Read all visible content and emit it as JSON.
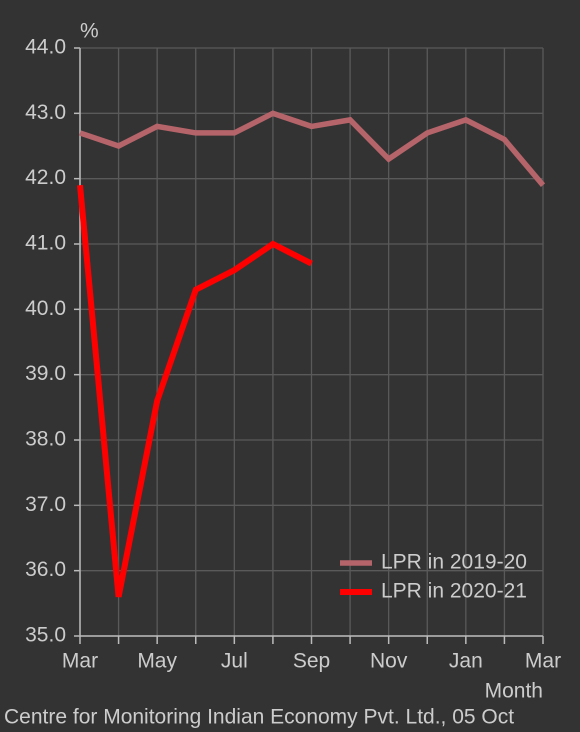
{
  "chart_data": {
    "type": "line",
    "y_unit_label": "%",
    "x_axis_label": "Month",
    "source": "Centre for Monitoring Indian Economy Pvt. Ltd., 05 Oct",
    "categories": [
      "Mar",
      null,
      "May",
      null,
      "Jul",
      null,
      "Sep",
      null,
      "Nov",
      null,
      "Jan",
      null,
      "Mar"
    ],
    "series": [
      {
        "name": "LPR in 2019-20",
        "color": "#b5646a",
        "values": [
          42.7,
          42.5,
          42.8,
          42.7,
          42.7,
          43.0,
          42.8,
          42.9,
          42.3,
          42.7,
          42.9,
          42.6,
          41.9
        ]
      },
      {
        "name": "LPR in 2020-21",
        "color": "#ff0000",
        "values": [
          41.9,
          35.6,
          38.6,
          40.3,
          40.6,
          41.0,
          40.7,
          null,
          null,
          null,
          null,
          null,
          null
        ]
      }
    ],
    "ylim": [
      35,
      44
    ],
    "yticks": [
      {
        "value": 35,
        "label": "35.0"
      },
      {
        "value": 36,
        "label": "36.0"
      },
      {
        "value": 37,
        "label": "37.0"
      },
      {
        "value": 38,
        "label": "38.0"
      },
      {
        "value": 39,
        "label": "39.0"
      },
      {
        "value": 40,
        "label": "40.0"
      },
      {
        "value": 41,
        "label": "41.0"
      },
      {
        "value": 42,
        "label": "42.0"
      },
      {
        "value": 43,
        "label": "43.0"
      },
      {
        "value": 44,
        "label": "44.0"
      }
    ],
    "grid": true,
    "legend": "lower right"
  }
}
